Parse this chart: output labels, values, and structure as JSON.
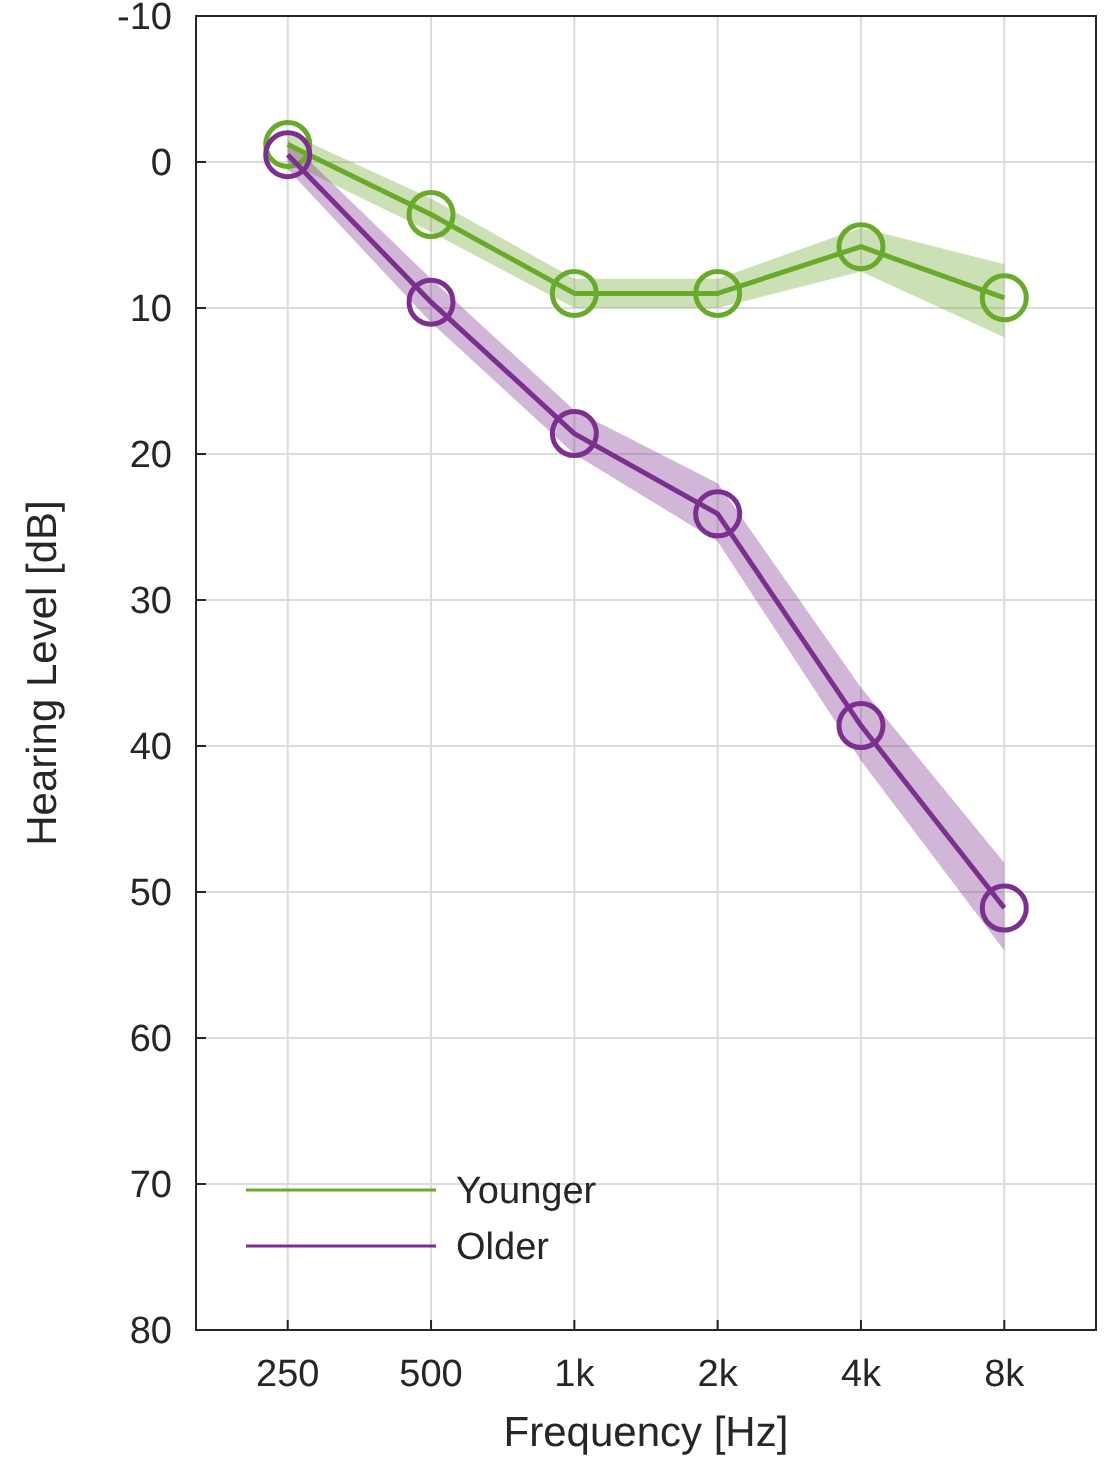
{
  "chart_data": {
    "type": "line",
    "xlabel": "Frequency [Hz]",
    "ylabel": "Hearing Level [dB]",
    "categories": [
      "250",
      "500",
      "1k",
      "2k",
      "4k",
      "8k"
    ],
    "ylim": [
      80,
      -10
    ],
    "yticks": [
      -10,
      0,
      10,
      20,
      30,
      40,
      50,
      60,
      70,
      80
    ],
    "grid": true,
    "legend": "bottom left",
    "marker": "circle",
    "line_style": "solid",
    "series": [
      {
        "name": "Younger",
        "color": "#6aaa2a",
        "values": [
          -1.2,
          3.6,
          9,
          9,
          5.8,
          9.3
        ],
        "lower": [
          -2,
          2.5,
          8,
          8,
          4.5,
          7
        ],
        "upper": [
          0,
          4.8,
          10,
          10,
          7.5,
          12
        ]
      },
      {
        "name": "Older",
        "color": "#7b2f8e",
        "values": [
          -0.5,
          9.6,
          18.6,
          24.1,
          38.6,
          51.1
        ],
        "lower": [
          -1.5,
          8,
          17,
          22,
          36,
          48
        ],
        "upper": [
          0.5,
          11,
          20,
          26,
          41,
          54
        ]
      }
    ]
  }
}
